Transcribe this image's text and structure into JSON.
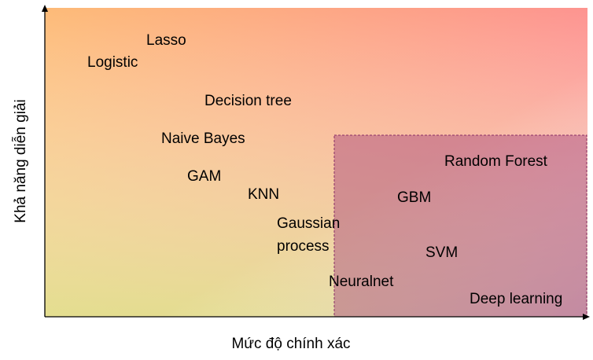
{
  "axes": {
    "x_title": "Mức độ chính xác",
    "y_title": "Khả năng diễn giải"
  },
  "models": [
    {
      "label": "Lasso"
    },
    {
      "label": "Logistic"
    },
    {
      "label": "Decision tree"
    },
    {
      "label": "Naive Bayes"
    },
    {
      "label": "GAM"
    },
    {
      "label": "KNN"
    },
    {
      "label_line1": "Gaussian",
      "label_line2": "process"
    },
    {
      "label": "Neuralnet"
    },
    {
      "label": "Random Forest"
    },
    {
      "label": "GBM"
    },
    {
      "label": "SVM"
    },
    {
      "label": "Deep learning"
    }
  ],
  "colors": {
    "gradient_top_left": "#fdbb78",
    "gradient_top_right": "#fd9490",
    "gradient_bottom_left": "#e3e08e",
    "gradient_bottom_right": "#e8b8c5",
    "highlight_fill": "#a03a78",
    "highlight_stroke": "#8a2f66",
    "axis": "#000000"
  }
}
